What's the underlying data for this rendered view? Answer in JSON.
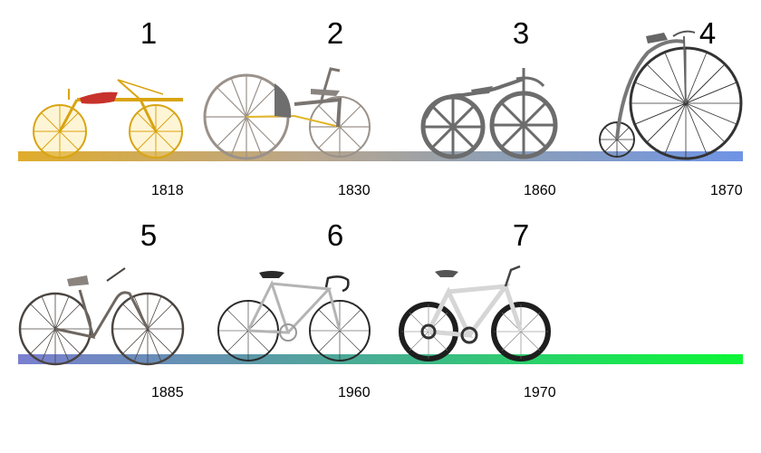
{
  "timeline": {
    "row1": [
      {
        "number": "1",
        "year": "1818",
        "icon": "draisine-icon"
      },
      {
        "number": "2",
        "year": "1830",
        "icon": "treadle-bicycle-icon"
      },
      {
        "number": "3",
        "year": "1860",
        "icon": "velocipede-icon"
      },
      {
        "number": "4",
        "year": "1870",
        "icon": "penny-farthing-icon"
      }
    ],
    "row2": [
      {
        "number": "5",
        "year": "1885",
        "icon": "safety-bicycle-icon"
      },
      {
        "number": "6",
        "year": "1960",
        "icon": "road-bicycle-icon"
      },
      {
        "number": "7",
        "year": "1970",
        "icon": "mountain-bicycle-icon"
      }
    ]
  },
  "colors": {
    "row1_gradient": [
      "#e0ac2c",
      "#b9a68c",
      "#8fa0b4",
      "#6f94e6"
    ],
    "row2_gradient": [
      "#7a7fd0",
      "#5f96ab",
      "#3fb68a",
      "#1ee058",
      "#0cf636"
    ],
    "draisine": "#f2c21c",
    "seat": "#c8322c"
  }
}
